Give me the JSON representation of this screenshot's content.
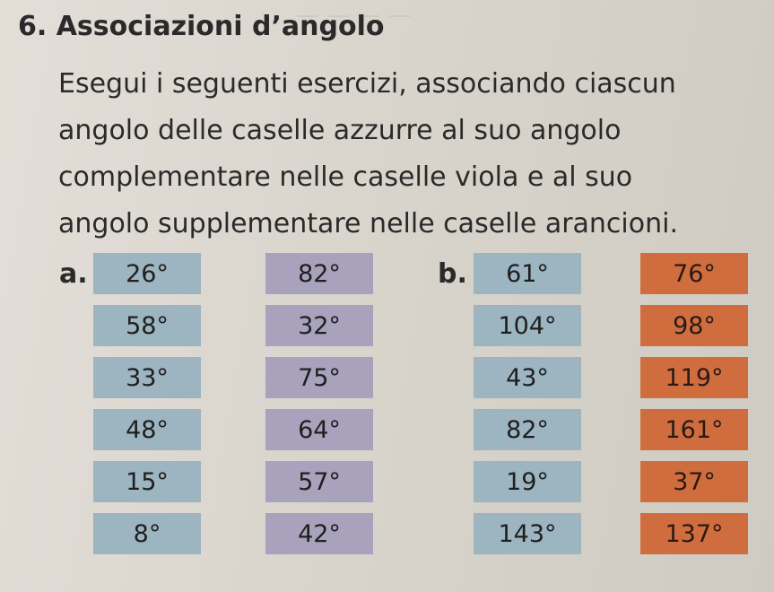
{
  "exercise": {
    "number_title": "6. Associazioni d’angolo",
    "lines": [
      "Esegui i seguenti esercizi, associando ciascun",
      "angolo delle caselle azzurre al suo angolo",
      "complementare nelle caselle viola e al suo",
      "angolo supplementare nelle caselle arancioni."
    ]
  },
  "part_a": {
    "label": "a.",
    "blue": [
      "26°",
      "58°",
      "33°",
      "48°",
      "15°",
      "8°"
    ],
    "violet": [
      "82°",
      "32°",
      "75°",
      "64°",
      "57°",
      "42°"
    ]
  },
  "part_b": {
    "label": "b.",
    "blue": [
      "61°",
      "104°",
      "43°",
      "82°",
      "19°",
      "143°"
    ],
    "orange": [
      "76°",
      "98°",
      "119°",
      "161°",
      "37°",
      "137°"
    ]
  },
  "colors": {
    "blue": "#9cb5c0",
    "violet": "#a8a2bd",
    "orange": "#d06d3f"
  }
}
